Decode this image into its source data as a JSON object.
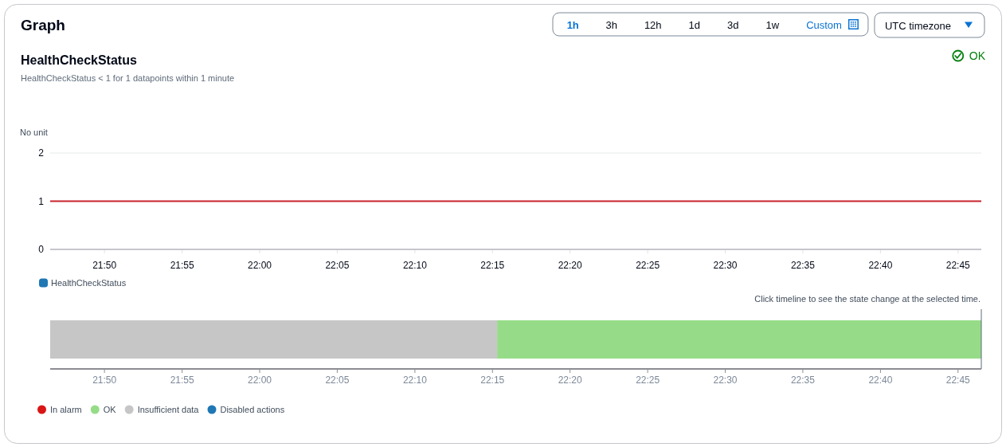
{
  "chart_data": [
    {
      "type": "other",
      "title": "Graph",
      "annotations": [
        "1h",
        "3h",
        "12h",
        "1d",
        "3d",
        "1w",
        "Custom",
        "UTC timezone"
      ]
    },
    {
      "type": "line",
      "title": "HealthCheckStatus",
      "subtitle": "HealthCheckStatus < 1 for 1 datapoints within 1 minute",
      "ylabel": "No unit",
      "annotations": [
        "OK"
      ],
      "series": [
        {
          "name": "HealthCheckStatus",
          "color": "#1f77b4"
        },
        {
          "color": "#c8232c",
          "x": [
            21.775,
            22.775
          ],
          "values": [
            1,
            1
          ]
        }
      ],
      "xlim": [
        21.775,
        22.775
      ],
      "xticks": [
        {
          "value": 21.8333,
          "label": "21:50"
        },
        {
          "value": 21.9167,
          "label": "21:55"
        },
        {
          "value": 22,
          "label": "22:00"
        },
        {
          "value": 22.0833,
          "label": "22:05"
        },
        {
          "value": 22.1667,
          "label": "22:10"
        },
        {
          "value": 22.25,
          "label": "22:15"
        },
        {
          "value": 22.3333,
          "label": "22:20"
        },
        {
          "value": 22.4167,
          "label": "22:25"
        },
        {
          "value": 22.5,
          "label": "22:30"
        },
        {
          "value": 22.5833,
          "label": "22:35"
        },
        {
          "value": 22.6667,
          "label": "22:40"
        },
        {
          "value": 22.75,
          "label": "22:45"
        }
      ],
      "ylim": [
        0,
        2
      ],
      "yticks": [
        0,
        1,
        2
      ],
      "legend": "bottom"
    },
    {
      "type": "bar",
      "orientation": "horizontal",
      "categories": [
        null
      ],
      "annotations": [
        "Click timeline to see the state change at the selected time."
      ],
      "series": [
        {
          "name": "In alarm",
          "color": "#d91515",
          "values": [
            null
          ]
        },
        {
          "name": "OK",
          "color": "#96dc88",
          "base": [
            22.255
          ],
          "values": [
            0.52
          ]
        },
        {
          "name": "Insufficient data",
          "color": "#c6c6c6",
          "base": [
            21.775
          ],
          "values": [
            0.48
          ]
        },
        {
          "name": "Disabled actions",
          "color": "#1f77b4",
          "values": [
            null
          ]
        }
      ],
      "xlim": [
        21.775,
        22.775
      ],
      "xticks": [
        {
          "value": 21.8333,
          "label": "21:50"
        },
        {
          "value": 21.9167,
          "label": "21:55"
        },
        {
          "value": 22,
          "label": "22:00"
        },
        {
          "value": 22.0833,
          "label": "22:05"
        },
        {
          "value": 22.1667,
          "label": "22:10"
        },
        {
          "value": 22.25,
          "label": "22:15"
        },
        {
          "value": 22.3333,
          "label": "22:20"
        },
        {
          "value": 22.4167,
          "label": "22:25"
        },
        {
          "value": 22.5,
          "label": "22:30"
        },
        {
          "value": 22.5833,
          "label": "22:35"
        },
        {
          "value": 22.6667,
          "label": "22:40"
        },
        {
          "value": 22.75,
          "label": "22:45"
        }
      ],
      "tick_labels": "x",
      "legend": "bottom"
    }
  ]
}
